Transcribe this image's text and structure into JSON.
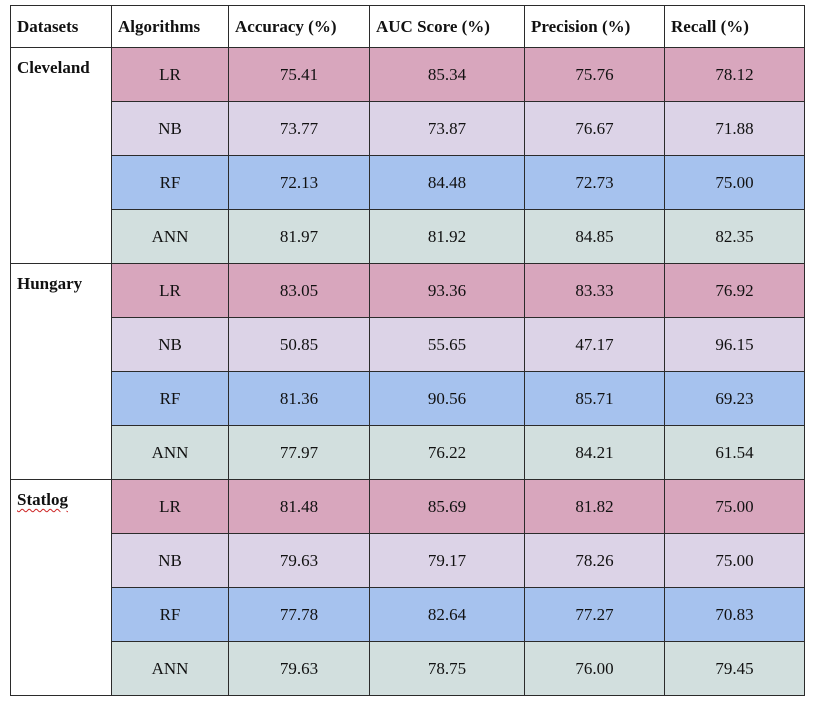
{
  "headers": [
    "Datasets",
    "Algorithms",
    "Accuracy (%)",
    "AUC Score (%)",
    "Precision (%)",
    "Recall (%)"
  ],
  "groups": [
    {
      "dataset": "Cleveland",
      "rows": [
        {
          "algorithm": "LR",
          "accuracy": "75.41",
          "auc": "85.34",
          "precision": "75.76",
          "recall": "78.12"
        },
        {
          "algorithm": "NB",
          "accuracy": "73.77",
          "auc": "73.87",
          "precision": "76.67",
          "recall": "71.88"
        },
        {
          "algorithm": "RF",
          "accuracy": "72.13",
          "auc": "84.48",
          "precision": "72.73",
          "recall": "75.00"
        },
        {
          "algorithm": "ANN",
          "accuracy": "81.97",
          "auc": "81.92",
          "precision": "84.85",
          "recall": "82.35"
        }
      ]
    },
    {
      "dataset": "Hungary",
      "rows": [
        {
          "algorithm": "LR",
          "accuracy": "83.05",
          "auc": "93.36",
          "precision": "83.33",
          "recall": "76.92"
        },
        {
          "algorithm": "NB",
          "accuracy": "50.85",
          "auc": "55.65",
          "precision": "47.17",
          "recall": "96.15"
        },
        {
          "algorithm": "RF",
          "accuracy": "81.36",
          "auc": "90.56",
          "precision": "85.71",
          "recall": "69.23"
        },
        {
          "algorithm": "ANN",
          "accuracy": "77.97",
          "auc": "76.22",
          "precision": "84.21",
          "recall": "61.54"
        }
      ]
    },
    {
      "dataset": "Statlog",
      "rows": [
        {
          "algorithm": "LR",
          "accuracy": "81.48",
          "auc": "85.69",
          "precision": "81.82",
          "recall": "75.00"
        },
        {
          "algorithm": "NB",
          "accuracy": "79.63",
          "auc": "79.17",
          "precision": "78.26",
          "recall": "75.00"
        },
        {
          "algorithm": "RF",
          "accuracy": "77.78",
          "auc": "82.64",
          "precision": "77.27",
          "recall": "70.83"
        },
        {
          "algorithm": "ANN",
          "accuracy": "79.63",
          "auc": "78.75",
          "precision": "76.00",
          "recall": "79.45"
        }
      ]
    }
  ],
  "row_colors": {
    "LR": "#d8a6bd",
    "NB": "#dcd3e7",
    "RF": "#a6c2ee",
    "ANN": "#d2dfde"
  }
}
